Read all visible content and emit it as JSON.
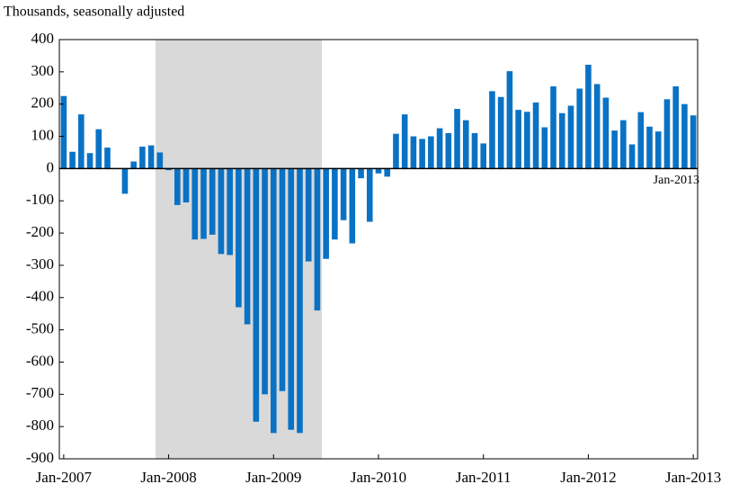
{
  "chart_data": {
    "type": "bar",
    "subtitle": "Thousands, seasonally adjusted",
    "annotation": "Jan-2013",
    "color": "#0a72c4",
    "categories": [
      "Jan-2007",
      null,
      null,
      null,
      null,
      null,
      null,
      null,
      null,
      null,
      null,
      null,
      "Jan-2008",
      null,
      null,
      null,
      null,
      null,
      null,
      null,
      null,
      null,
      null,
      null,
      "Jan-2009",
      null,
      null,
      null,
      null,
      null,
      null,
      null,
      null,
      null,
      null,
      null,
      "Jan-2010",
      null,
      null,
      null,
      null,
      null,
      null,
      null,
      null,
      null,
      null,
      null,
      "Jan-2011",
      null,
      null,
      null,
      null,
      null,
      null,
      null,
      null,
      null,
      null,
      null,
      "Jan-2012",
      null,
      null,
      null,
      null,
      null,
      null,
      null,
      null,
      null,
      null,
      null,
      "Jan-2013"
    ],
    "values": [
      225,
      52,
      168,
      48,
      122,
      65,
      0,
      -78,
      22,
      68,
      72,
      50,
      -5,
      -113,
      -105,
      -220,
      -218,
      -205,
      -265,
      -268,
      -430,
      -483,
      -785,
      -700,
      -820,
      -690,
      -810,
      -820,
      -288,
      -440,
      -280,
      -220,
      -160,
      -232,
      -30,
      -165,
      -15,
      -25,
      108,
      168,
      100,
      92,
      100,
      125,
      110,
      185,
      150,
      110,
      78,
      240,
      222,
      302,
      182,
      176,
      205,
      128,
      255,
      172,
      195,
      248,
      322,
      262,
      220,
      118,
      150,
      75,
      175,
      130,
      115,
      215,
      255,
      200,
      165
    ],
    "ylim": [
      -900,
      400
    ],
    "yticks": [
      -900,
      -800,
      -700,
      -600,
      -500,
      -400,
      -300,
      -200,
      -100,
      0,
      100,
      200,
      300,
      400
    ]
  }
}
